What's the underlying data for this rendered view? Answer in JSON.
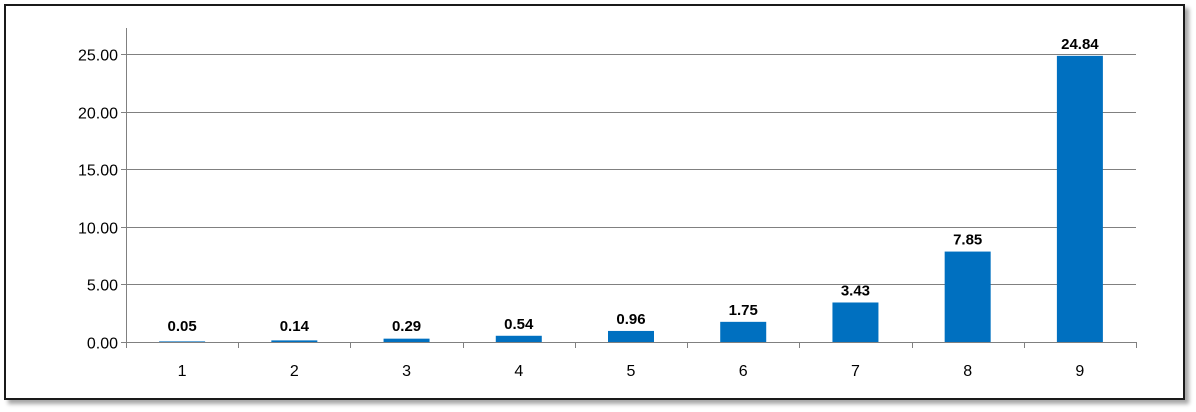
{
  "chart_data": {
    "type": "bar",
    "categories": [
      "1",
      "2",
      "3",
      "4",
      "5",
      "6",
      "7",
      "8",
      "9"
    ],
    "values": [
      0.05,
      0.14,
      0.29,
      0.54,
      0.96,
      1.75,
      3.43,
      7.85,
      24.84
    ],
    "data_labels": [
      "0.05",
      "0.14",
      "0.29",
      "0.54",
      "0.96",
      "1.75",
      "3.43",
      "7.85",
      "24.84"
    ],
    "title": "",
    "xlabel": "",
    "ylabel": "",
    "ylim": [
      0,
      25
    ],
    "yticks": [
      "0.00",
      "5.00",
      "10.00",
      "15.00",
      "20.00",
      "25.00"
    ],
    "ytick_values": [
      0,
      5,
      10,
      15,
      20,
      25
    ],
    "grid": true,
    "legend": "none",
    "bar_color": "#0070C0",
    "grid_color": "#808080"
  }
}
